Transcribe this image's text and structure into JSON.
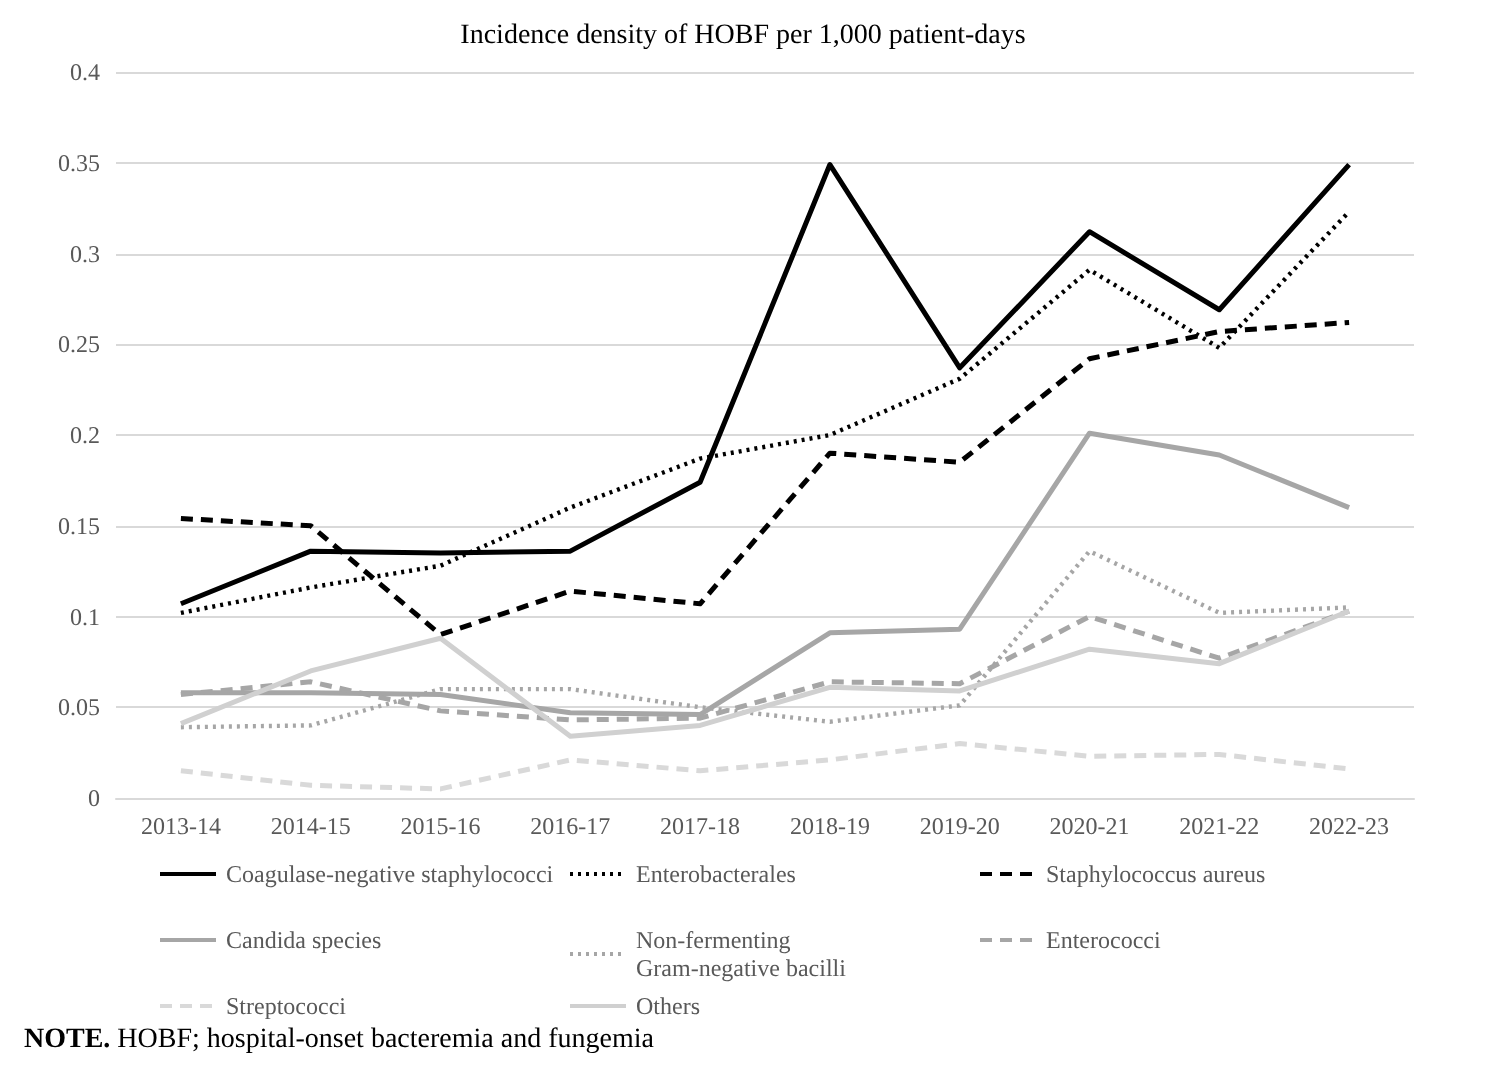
{
  "chart_data": {
    "type": "line",
    "title": "Incidence density of HOBF per 1,000 patient-days",
    "categories": [
      "2013-14",
      "2014-15",
      "2015-16",
      "2016-17",
      "2017-18",
      "2018-19",
      "2019-20",
      "2020-21",
      "2021-22",
      "2022-23"
    ],
    "series": [
      {
        "name": "Coagulase-negative staphylococci",
        "color": "#000000",
        "line_style": "solid",
        "values": [
          0.107,
          0.136,
          0.135,
          0.136,
          0.174,
          0.349,
          0.237,
          0.312,
          0.269,
          0.349
        ]
      },
      {
        "name": "Enterobacterales",
        "color": "#000000",
        "line_style": "dotted",
        "values": [
          0.102,
          0.116,
          0.128,
          0.16,
          0.187,
          0.2,
          0.231,
          0.291,
          0.248,
          0.323
        ]
      },
      {
        "name": "Staphylococcus aureus",
        "color": "#000000",
        "line_style": "dashed",
        "values": [
          0.154,
          0.15,
          0.09,
          0.114,
          0.107,
          0.19,
          0.185,
          0.242,
          0.257,
          0.262
        ]
      },
      {
        "name": "Candida species",
        "color": "#a6a6a6",
        "line_style": "solid",
        "values": [
          0.058,
          0.058,
          0.057,
          0.047,
          0.046,
          0.091,
          0.093,
          0.201,
          0.189,
          0.16
        ]
      },
      {
        "name": "Non-fermenting Gram-negative bacilli",
        "color": "#a6a6a6",
        "line_style": "dotted",
        "values": [
          0.039,
          0.04,
          0.06,
          0.06,
          0.05,
          0.042,
          0.051,
          0.136,
          0.102,
          0.105
        ]
      },
      {
        "name": "Enterococci",
        "color": "#a6a6a6",
        "line_style": "dashed",
        "values": [
          0.057,
          0.064,
          0.048,
          0.043,
          0.044,
          0.064,
          0.063,
          0.1,
          0.077,
          0.103
        ]
      },
      {
        "name": "Streptococci",
        "color": "#d9d9d9",
        "line_style": "dashed",
        "values": [
          0.015,
          0.007,
          0.005,
          0.021,
          0.015,
          0.021,
          0.03,
          0.023,
          0.024,
          0.016
        ]
      },
      {
        "name": "Others",
        "color": "#d0d0d0",
        "line_style": "solid",
        "values": [
          0.041,
          0.07,
          0.088,
          0.034,
          0.04,
          0.061,
          0.059,
          0.082,
          0.074,
          0.103
        ]
      }
    ],
    "ylim": [
      0,
      0.4
    ],
    "yticks": [
      0,
      0.05,
      0.1,
      0.15,
      0.2,
      0.25,
      0.3,
      0.35,
      0.4
    ],
    "grid": "y",
    "legend": "bottom",
    "marker": "none",
    "annotations": [
      "NOTE. HOBF; hospital-onset bacteremia and fungemia"
    ]
  }
}
